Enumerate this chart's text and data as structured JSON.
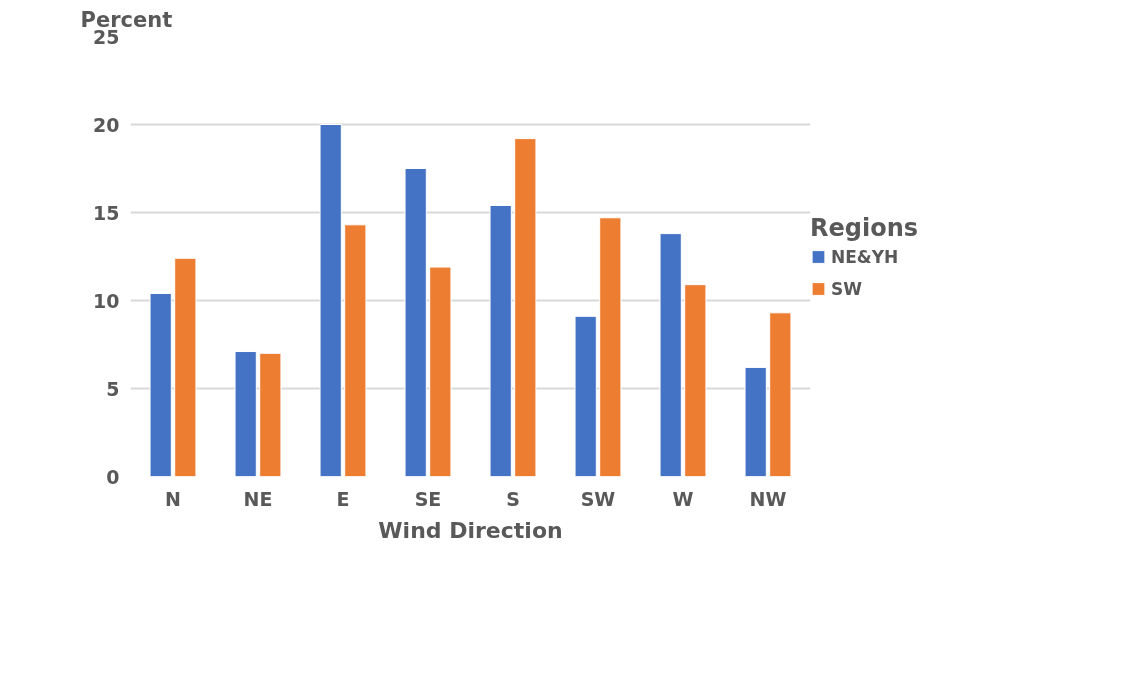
{
  "chart_data": {
    "type": "bar",
    "xlabel": "Wind Direction",
    "ylabel": "Percent",
    "legend_title": "Regions",
    "categories": [
      "N",
      "NE",
      "E",
      "SE",
      "S",
      "SW",
      "W",
      "NW"
    ],
    "series": [
      {
        "name": "NE&YH",
        "color": "#4472c4",
        "values": [
          10.4,
          7.1,
          20.0,
          17.5,
          15.4,
          9.1,
          13.8,
          6.2
        ]
      },
      {
        "name": "SW",
        "color": "#ed7d31",
        "values": [
          12.4,
          7.0,
          14.3,
          11.9,
          19.2,
          14.7,
          10.9,
          9.3
        ]
      }
    ],
    "ylim": [
      0,
      25
    ],
    "yticks": [
      0,
      5,
      10,
      15,
      20,
      25
    ],
    "grid": "y",
    "legend": "right"
  }
}
